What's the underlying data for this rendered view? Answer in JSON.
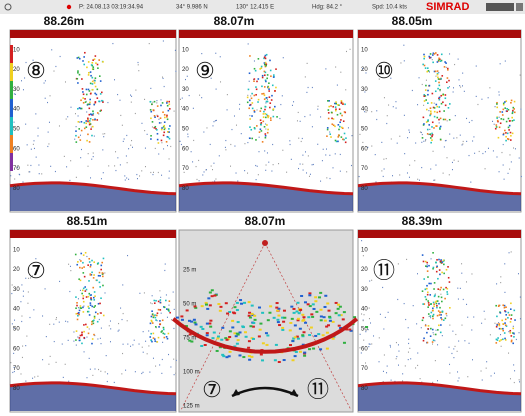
{
  "top_bar": {
    "position": "P: 24.08.13 03:19:34.94",
    "latitude": "34° 9.986 N",
    "longitude": "130° 12.415 E",
    "heading": "Hdg: 84.2 °",
    "speed": "Spd: 10.4 kts",
    "brand": "SIMRAD"
  },
  "depth_scale": [
    "10",
    "20",
    "30",
    "40",
    "50",
    "60",
    "70",
    "80"
  ],
  "panels": [
    {
      "depth": "88.26m",
      "beam": "⑧"
    },
    {
      "depth": "88.07m",
      "beam": "⑨"
    },
    {
      "depth": "88.05m",
      "beam": "⑩"
    },
    {
      "depth": "88.51m",
      "beam": "⑦"
    },
    {
      "depth": "88.39m",
      "beam": "⑪"
    }
  ],
  "sonar": {
    "depth": "88.07m",
    "range_labels": [
      "25 m",
      "50 m",
      "75 m",
      "100 m",
      "125 m"
    ],
    "from_beam": "⑦",
    "to_beam": "⑪"
  }
}
